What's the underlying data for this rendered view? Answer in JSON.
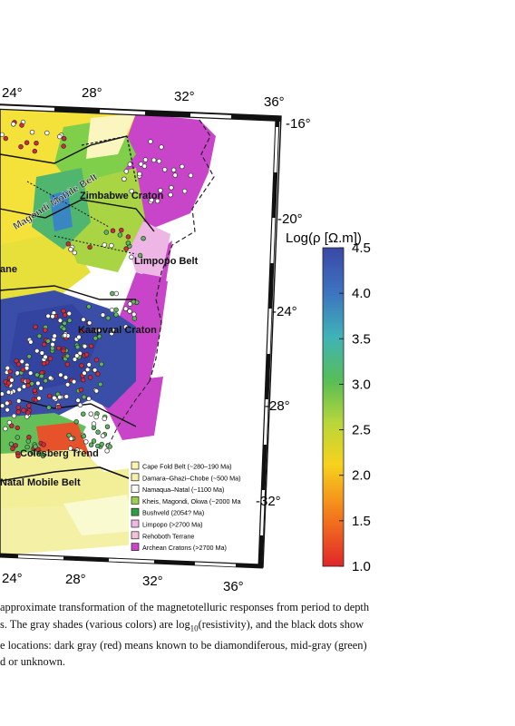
{
  "map": {
    "top_lon_labels": [
      "24°",
      "28°",
      "32°",
      "36°"
    ],
    "bottom_lon_labels": [
      "24°",
      "28°",
      "32°",
      "36°"
    ],
    "lat_labels": [
      "-16°",
      "-20°",
      "-24°",
      "-28°",
      "-32°"
    ],
    "region_labels": {
      "magondi": "Magondi Mobile Belt",
      "zimbabwe": "Zimbabwe Craton",
      "limpopo": "Limpopo Belt",
      "kaapvaal": "Kaapvaal Craton",
      "colesberg": "Colesberg Trend",
      "natal": "Natal Mobile Belt",
      "partial_ane": "ane"
    }
  },
  "colorbar": {
    "title": "Log(ρ [Ω.m])",
    "ticks": [
      "4.5",
      "4.0",
      "3.5",
      "3.0",
      "2.5",
      "2.0",
      "1.5",
      "1.0"
    ],
    "range": [
      1.0,
      4.5
    ],
    "colors": [
      "#e0262a",
      "#f37a1c",
      "#f6d21d",
      "#b9d63a",
      "#58be55",
      "#3fb3b7",
      "#3d73c0",
      "#3a48a6"
    ]
  },
  "legend": {
    "items": [
      {
        "label": "Cape Fold Belt (~280–190 Ma)",
        "color": "#fbf5b0"
      },
      {
        "label": "Damara–Ghazi–Chobe (~500 Ma)",
        "color": "#f6f0a8"
      },
      {
        "label": "Namaqua–Natal (~1100 Ma)",
        "color": "#ffffff"
      },
      {
        "label": "Kheis, Magondi, Okwa (~2000 Ma",
        "color": "#9bd04a"
      },
      {
        "label": "Bushveld (2054? Ma)",
        "color": "#2f9e3e"
      },
      {
        "label": "Limpopo (>2700 Ma)",
        "color": "#efb8e6"
      },
      {
        "label": "Rehoboth Terrane",
        "color": "#f4c2d8"
      },
      {
        "label": "Archean Cratons (>2700 Ma)",
        "color": "#cc44c8"
      }
    ]
  },
  "caption": {
    "lines": [
      "approximate transformation of the magnetotelluric responses from period to depth",
      "s. The gray shades (various colors) are log10(resistivity), and the black dots show",
      "e locations: dark gray (red) means known to be diamondiferous, mid-gray (green)",
      "d or unknown."
    ]
  }
}
